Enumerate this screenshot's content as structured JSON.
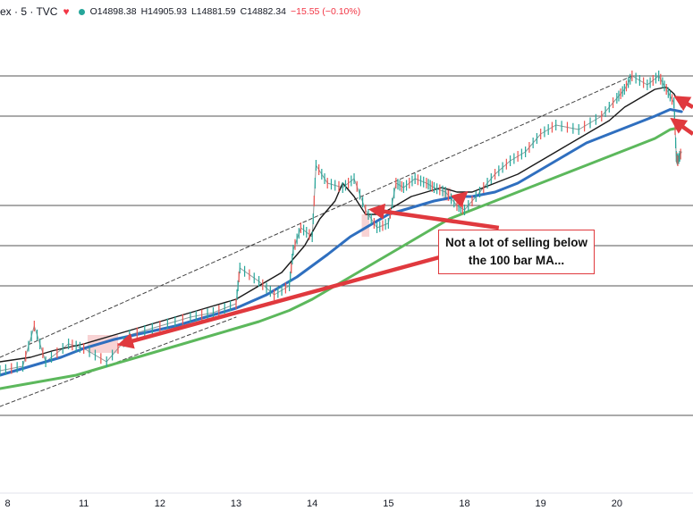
{
  "header": {
    "title": "ex · 5 · TVC",
    "o_label": "O",
    "o_value": "14898.38",
    "h_label": "H",
    "h_value": "14905.93",
    "l_label": "L",
    "l_value": "14881.59",
    "c_label": "C",
    "c_value": "14882.34",
    "change": "−15.55 (−0.10%)"
  },
  "annotation": {
    "line1": "Not a lot of selling below",
    "line2": "the 100 bar MA..."
  },
  "colors": {
    "ma_short": "#1a1a1a",
    "ma_100": "#2f6fbf",
    "ma_200": "#5cb85c",
    "arrow": "#e0393e",
    "candle_up": "#26a69a",
    "candle_down": "#ef5350"
  },
  "chart_data": {
    "type": "line",
    "x_ticks": [
      "8",
      "11",
      "12",
      "13",
      "14",
      "15",
      "18",
      "19",
      "20"
    ],
    "x_tick_pos": [
      0,
      1,
      2,
      3,
      4,
      5,
      6,
      7,
      8
    ],
    "xlim": [
      -0.1,
      9.0
    ],
    "ylim": [
      0,
      100
    ],
    "horizontal_levels": [
      91,
      82,
      62,
      53,
      44,
      15
    ],
    "series": [
      {
        "key": "price",
        "x": [
          -0.1,
          0.2,
          0.35,
          0.5,
          0.8,
          1.0,
          1.3,
          1.6,
          2.0,
          2.4,
          2.7,
          3.0,
          3.05,
          3.3,
          3.5,
          3.7,
          3.75,
          3.85,
          4.0,
          4.05,
          4.2,
          4.4,
          4.55,
          4.7,
          4.85,
          5.0,
          5.1,
          5.2,
          5.35,
          5.5,
          5.6,
          5.75,
          5.9,
          6.0,
          6.2,
          6.4,
          6.6,
          6.8,
          7.0,
          7.2,
          7.5,
          7.8,
          8.0,
          8.1,
          8.2,
          8.4,
          8.55,
          8.65,
          8.75,
          8.78,
          8.8,
          8.85
        ],
        "y": [
          25,
          26,
          35,
          27,
          31,
          30,
          27,
          33,
          35,
          37,
          38,
          40,
          48,
          45,
          42,
          44,
          52,
          57,
          55,
          71,
          67,
          66,
          68,
          61,
          57,
          58,
          67,
          66,
          68,
          67,
          66,
          65,
          62,
          61,
          65,
          69,
          72,
          74,
          78,
          80,
          79,
          82,
          86,
          88,
          91,
          89,
          91,
          88,
          85,
          73,
          72,
          74
        ]
      },
      {
        "key": "ma_short",
        "x": [
          -0.1,
          0.3,
          0.6,
          1.0,
          1.4,
          1.8,
          2.2,
          2.6,
          3.0,
          3.3,
          3.6,
          3.9,
          4.1,
          4.3,
          4.4,
          4.55,
          4.7,
          4.9,
          5.1,
          5.3,
          5.5,
          5.7,
          5.9,
          6.1,
          6.4,
          6.7,
          7.0,
          7.3,
          7.6,
          7.9,
          8.1,
          8.3,
          8.5,
          8.65,
          8.75,
          8.85
        ],
        "y": [
          27,
          28,
          29.5,
          31,
          33,
          35,
          37,
          39,
          41,
          44,
          47,
          53,
          59,
          63,
          67,
          64,
          60,
          60,
          62,
          64,
          65,
          66,
          65,
          65,
          67,
          69,
          72,
          75,
          78,
          81,
          84,
          86,
          88,
          88.5,
          87,
          84
        ]
      },
      {
        "key": "ma_100",
        "x": [
          -0.1,
          0.3,
          0.7,
          1.0,
          1.4,
          1.8,
          2.2,
          2.6,
          3.0,
          3.4,
          3.8,
          4.2,
          4.5,
          4.8,
          5.0,
          5.3,
          5.6,
          5.9,
          6.1,
          6.4,
          6.7,
          7.0,
          7.3,
          7.6,
          7.9,
          8.2,
          8.5,
          8.7,
          8.85
        ],
        "y": [
          24,
          26,
          28,
          30,
          32,
          33.5,
          35,
          37,
          39,
          42,
          46,
          51,
          55,
          58,
          60,
          61.5,
          63,
          64,
          64,
          65,
          67,
          70,
          73,
          76,
          78,
          80,
          82,
          83.5,
          83
        ]
      },
      {
        "key": "ma_200",
        "x": [
          -0.1,
          0.4,
          0.9,
          1.3,
          1.7,
          2.1,
          2.5,
          2.9,
          3.3,
          3.7,
          4.0,
          4.3,
          4.6,
          4.9,
          5.2,
          5.5,
          5.8,
          6.1,
          6.4,
          6.7,
          7.0,
          7.3,
          7.6,
          7.9,
          8.2,
          8.5,
          8.7,
          8.85
        ],
        "y": [
          21,
          22.5,
          24,
          26,
          28,
          30,
          32,
          34,
          36,
          38.5,
          41,
          44,
          47,
          50,
          53,
          56,
          59,
          61,
          63,
          65,
          67,
          69,
          71,
          73,
          75,
          77,
          79,
          79.5
        ]
      },
      {
        "key": "trend_upper",
        "x": [
          -0.1,
          8.2
        ],
        "y": [
          28,
          91
        ]
      },
      {
        "key": "trend_lower",
        "x": [
          -0.1,
          3.0
        ],
        "y": [
          17,
          37
        ]
      }
    ],
    "annotations": [
      {
        "kind": "arrow",
        "from": [
          6.45,
          57
        ],
        "to": [
          4.8,
          61
        ]
      },
      {
        "kind": "arrow",
        "from": [
          5.9,
          63
        ],
        "to": [
          6.0,
          64.5
        ]
      },
      {
        "kind": "arrow",
        "from": [
          5.8,
          51
        ],
        "to": [
          1.5,
          31
        ]
      },
      {
        "kind": "arrow",
        "from": [
          9.0,
          84
        ],
        "to": [
          8.8,
          86
        ]
      },
      {
        "kind": "arrow",
        "from": [
          9.0,
          78
        ],
        "to": [
          8.75,
          81
        ]
      },
      {
        "kind": "highlight",
        "x": [
          1.05,
          1.45
        ],
        "y": [
          29,
          33
        ]
      },
      {
        "kind": "highlight",
        "x": [
          4.65,
          4.75
        ],
        "y": [
          55,
          60
        ]
      },
      {
        "kind": "highlight",
        "x": [
          5.72,
          5.82
        ],
        "y": [
          63,
          66
        ]
      }
    ]
  }
}
